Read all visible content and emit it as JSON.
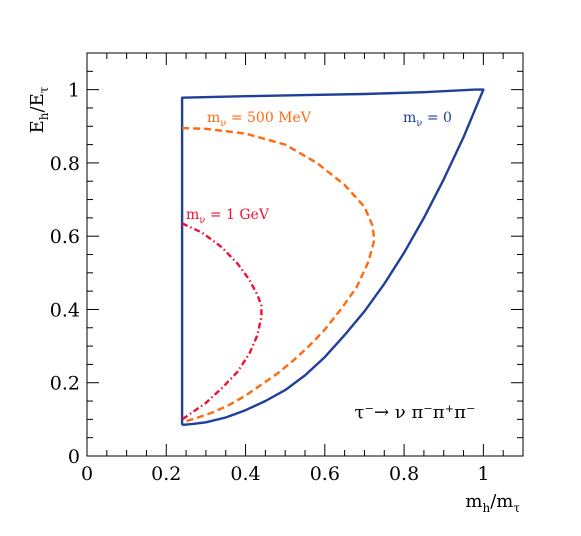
{
  "chart_data": {
    "type": "line",
    "title": "",
    "xlabel": "m_h/m_τ",
    "ylabel": "E_h/E_τ",
    "xlim": [
      0,
      1.1
    ],
    "ylim": [
      0,
      1.1
    ],
    "x_ticks": [
      "0",
      "0.2",
      "0.4",
      "0.6",
      "0.8",
      "1"
    ],
    "y_ticks": [
      "0",
      "0.2",
      "0.4",
      "0.6",
      "0.8",
      "1"
    ],
    "grid": false,
    "annotations": {
      "process": "τ⁻→ ν π⁻π⁺π⁻"
    },
    "series": [
      {
        "name": "m_ν = 0",
        "label": "m",
        "label_sub": "ν",
        "label_rest": " = 0",
        "color": "#1f3f99",
        "style": "solid",
        "x": [
          0.24,
          0.24,
          0.4,
          0.55,
          0.7,
          0.85,
          0.98,
          1.0,
          0.95,
          0.9,
          0.85,
          0.8,
          0.75,
          0.7,
          0.65,
          0.6,
          0.55,
          0.5,
          0.45,
          0.4,
          0.35,
          0.3,
          0.27,
          0.24
        ],
        "y": [
          0.085,
          0.978,
          0.982,
          0.985,
          0.988,
          0.993,
          1.0,
          1.0,
          0.87,
          0.755,
          0.65,
          0.555,
          0.47,
          0.395,
          0.33,
          0.27,
          0.22,
          0.18,
          0.15,
          0.125,
          0.105,
          0.092,
          0.088,
          0.085
        ]
      },
      {
        "name": "m_ν = 500 MeV",
        "label": "m",
        "label_sub": "ν",
        "label_rest": " = 500 MeV",
        "color": "#ff6a10",
        "style": "dashed",
        "x": [
          0.24,
          0.3,
          0.4,
          0.5,
          0.58,
          0.65,
          0.7,
          0.72,
          0.725,
          0.71,
          0.68,
          0.64,
          0.6,
          0.56,
          0.52,
          0.48,
          0.44,
          0.4,
          0.36,
          0.32,
          0.28,
          0.25
        ],
        "y": [
          0.895,
          0.893,
          0.88,
          0.85,
          0.8,
          0.74,
          0.68,
          0.63,
          0.59,
          0.53,
          0.46,
          0.4,
          0.345,
          0.3,
          0.26,
          0.225,
          0.195,
          0.165,
          0.14,
          0.12,
          0.105,
          0.095
        ]
      },
      {
        "name": "m_ν = 1 GeV",
        "label": "m",
        "label_sub": "ν",
        "label_rest": " = 1 GeV",
        "color": "#ee1133",
        "style": "dashdot",
        "x": [
          0.24,
          0.29,
          0.34,
          0.38,
          0.41,
          0.43,
          0.44,
          0.44,
          0.43,
          0.41,
          0.38,
          0.34,
          0.3,
          0.26,
          0.24
        ],
        "y": [
          0.635,
          0.61,
          0.57,
          0.525,
          0.48,
          0.44,
          0.41,
          0.38,
          0.33,
          0.28,
          0.23,
          0.185,
          0.145,
          0.115,
          0.1
        ]
      }
    ]
  }
}
